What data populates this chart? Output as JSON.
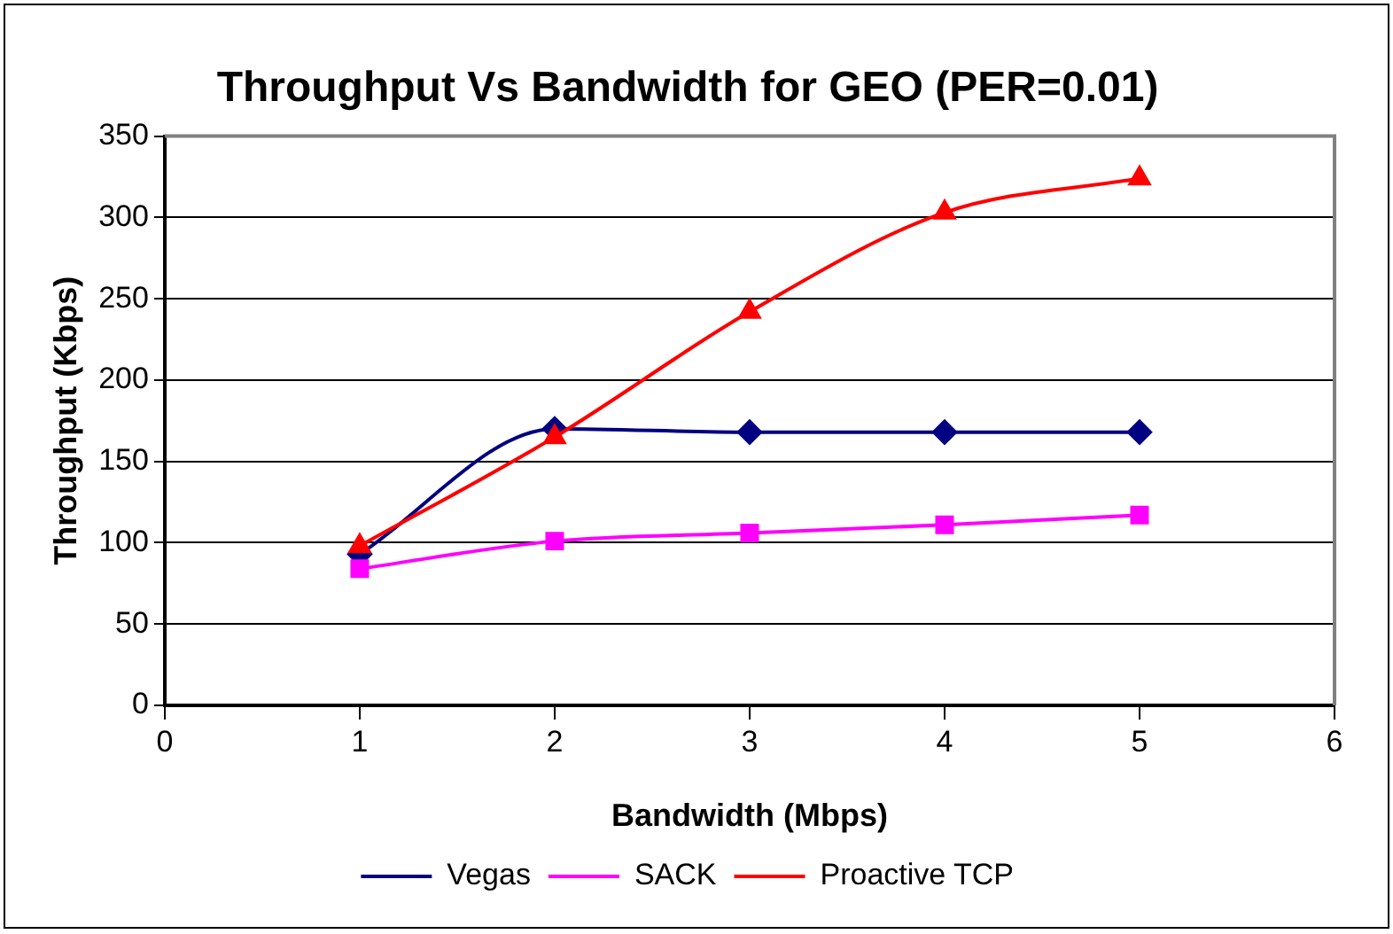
{
  "chart_data": {
    "type": "line",
    "title": "Throughput Vs Bandwidth for GEO (PER=0.01)",
    "xlabel": "Bandwidth (Mbps)",
    "ylabel": "Throughput (Kbps)",
    "x": [
      1,
      2,
      3,
      4,
      5
    ],
    "series": [
      {
        "name": "Vegas",
        "color": "#000080",
        "marker": "diamond",
        "values": [
          93,
          170,
          168,
          168,
          168
        ]
      },
      {
        "name": "SACK",
        "color": "#ff00ff",
        "marker": "square",
        "values": [
          84,
          101,
          106,
          111,
          117
        ]
      },
      {
        "name": "Proactive TCP",
        "color": "#ff0000",
        "marker": "triangle",
        "values": [
          98,
          165,
          242,
          303,
          324
        ]
      }
    ],
    "xlim": [
      0,
      6
    ],
    "xticks": [
      0,
      1,
      2,
      3,
      4,
      5,
      6
    ],
    "ylim": [
      0,
      350
    ],
    "yticks": [
      0,
      50,
      100,
      150,
      200,
      250,
      300,
      350
    ],
    "grid": "y",
    "legend": "bottom"
  }
}
